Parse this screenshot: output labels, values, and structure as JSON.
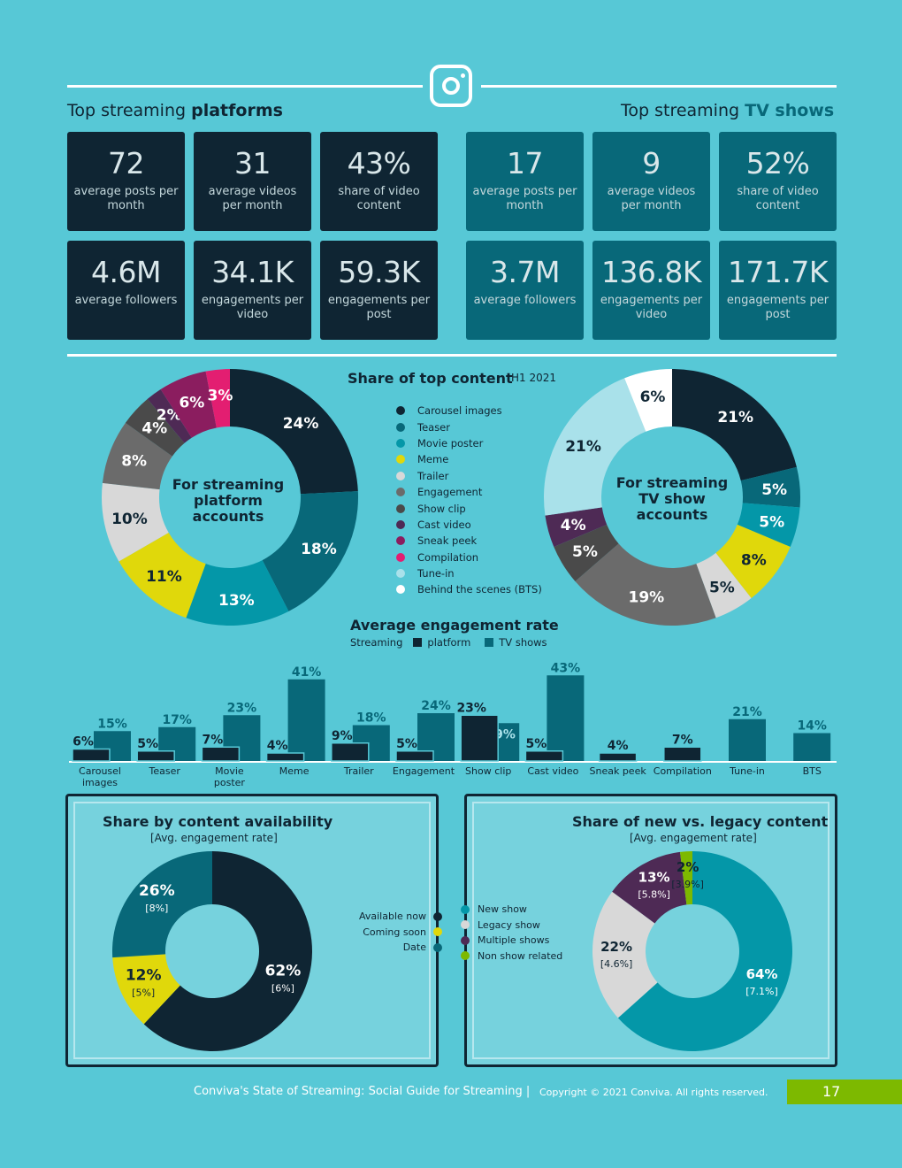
{
  "header": {
    "left_title_plain": "Top streaming ",
    "left_title_bold": "platforms",
    "right_title_plain": "Top streaming ",
    "right_title_bold": "TV shows",
    "icon": "instagram-icon"
  },
  "platform_stats": [
    {
      "value": "72",
      "label": "average posts per month"
    },
    {
      "value": "31",
      "label": "average videos per month"
    },
    {
      "value": "43%",
      "label": "share of video content"
    },
    {
      "value": "4.6M",
      "label": "average followers"
    },
    {
      "value": "34.1K",
      "label": "engagements per video"
    },
    {
      "value": "59.3K",
      "label": "engagements per post"
    }
  ],
  "tvshow_stats": [
    {
      "value": "17",
      "label": "average posts per month"
    },
    {
      "value": "9",
      "label": "average videos per month"
    },
    {
      "value": "52%",
      "label": "share of video content"
    },
    {
      "value": "3.7M",
      "label": "average followers"
    },
    {
      "value": "136.8K",
      "label": "engagements per video"
    },
    {
      "value": "171.7K",
      "label": "engagements per post"
    }
  ],
  "share_top_content": {
    "title": "Share of top content",
    "period": "H1 2021",
    "categories": [
      "Carousel images",
      "Teaser",
      "Movie poster",
      "Meme",
      "Trailer",
      "Engagement",
      "Show clip",
      "Cast video",
      "Sneak peek",
      "Compilation",
      "Tune-in",
      "Behind the scenes (BTS)"
    ],
    "colors": [
      "#0f2533",
      "#086879",
      "#0497a8",
      "#e0d80b",
      "#d8d8d8",
      "#6b6b6b",
      "#4a4a4a",
      "#4e2a55",
      "#8b1d5f",
      "#e31e71",
      "#a9e1ea",
      "#ffffff"
    ]
  },
  "chart_data": [
    {
      "type": "pie",
      "title": "For streaming platform accounts",
      "categories": [
        "Carousel images",
        "Teaser",
        "Movie poster",
        "Meme",
        "Trailer",
        "Engagement",
        "Show clip",
        "Cast video",
        "Sneak peek",
        "Compilation"
      ],
      "values": [
        24,
        18,
        13,
        11,
        10,
        8,
        4,
        2,
        6,
        3
      ],
      "labels": [
        "24%",
        "18%",
        "13%",
        "11%",
        "10%",
        "8%",
        "4%",
        "2%",
        "6%",
        "3%"
      ]
    },
    {
      "type": "pie",
      "title": "For streaming TV show accounts",
      "categories": [
        "Carousel images",
        "Teaser",
        "Movie poster",
        "Meme",
        "Trailer",
        "Engagement",
        "Show clip",
        "Cast video",
        "Tune-in",
        "Behind the scenes (BTS)"
      ],
      "values": [
        21,
        5,
        5,
        8,
        5,
        19,
        5,
        4,
        21,
        6
      ],
      "labels": [
        "21%",
        "5%",
        "5%",
        "8%",
        "5%",
        "19%",
        "5%",
        "4%",
        "21%",
        "6%"
      ]
    },
    {
      "type": "bar",
      "title": "Average engagement rate",
      "legend_prefix": "Streaming",
      "categories": [
        "Carousel images",
        "Teaser",
        "Movie poster",
        "Meme",
        "Trailer",
        "Engagement",
        "Show clip",
        "Cast video",
        "Sneak peek",
        "Compilation",
        "Tune-in",
        "BTS"
      ],
      "category_labels": [
        [
          "Carousel",
          "images"
        ],
        [
          "Teaser"
        ],
        [
          "Movie",
          "poster"
        ],
        [
          "Meme"
        ],
        [
          "Trailer"
        ],
        [
          "Engagement"
        ],
        [
          "Show clip"
        ],
        [
          "Cast video"
        ],
        [
          "Sneak peek"
        ],
        [
          "Compilation"
        ],
        [
          "Tune-in"
        ],
        [
          "BTS"
        ]
      ],
      "series": [
        {
          "name": "platform",
          "color": "#0f2533",
          "values": [
            6,
            5,
            7,
            4,
            9,
            5,
            23,
            5,
            4,
            7,
            null,
            null
          ]
        },
        {
          "name": "TV shows",
          "color": "#086879",
          "values": [
            15,
            17,
            23,
            41,
            18,
            24,
            19,
            43,
            null,
            null,
            21,
            14
          ]
        }
      ]
    },
    {
      "type": "pie",
      "title": "Share by content availability",
      "subtitle": "[Avg. engagement rate]",
      "categories": [
        "Available now",
        "Coming soon",
        "Date"
      ],
      "values": [
        62,
        12,
        26
      ],
      "engagement_rate": [
        "[6%]",
        "[5%]",
        "[8%]"
      ],
      "labels": [
        "62%",
        "12%",
        "26%"
      ],
      "colors": [
        "#0f2533",
        "#e0d80b",
        "#086879"
      ]
    },
    {
      "type": "pie",
      "title": "Share of new vs. legacy content",
      "subtitle": "[Avg. engagement rate]",
      "categories": [
        "New show",
        "Legacy show",
        "Multiple shows",
        "Non show related"
      ],
      "values": [
        64,
        22,
        13,
        2
      ],
      "engagement_rate": [
        "[7.1%]",
        "[4.6%]",
        "[5.8%]",
        "[3.9%]"
      ],
      "labels": [
        "64%",
        "22%",
        "13%",
        "2%"
      ],
      "colors": [
        "#0497a8",
        "#d8d8d8",
        "#4e2a55",
        "#7db900"
      ]
    }
  ],
  "donut_centers": {
    "platform": [
      "For streaming",
      "platform",
      "accounts"
    ],
    "tvshow": [
      "For streaming",
      "TV show",
      "accounts"
    ]
  },
  "footer": {
    "title": "Conviva's State of Streaming: Social Guide for Streaming |",
    "copyright": "Copyright © 2021 Conviva. All rights reserved.",
    "page": "17"
  }
}
